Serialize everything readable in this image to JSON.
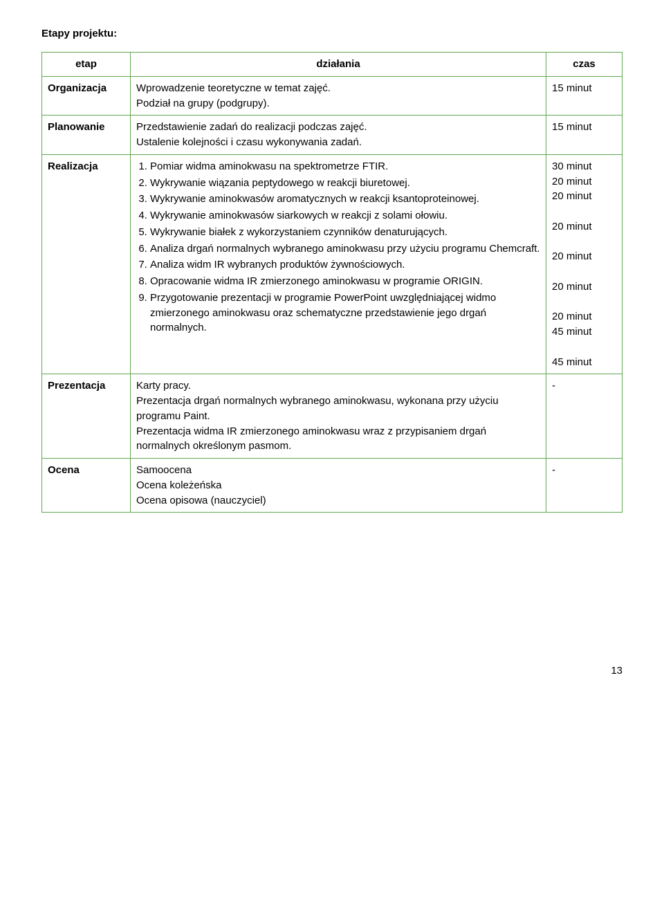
{
  "heading": "Etapy projektu:",
  "headers": {
    "etap": "etap",
    "dzialania": "działania",
    "czas": "czas"
  },
  "rows": {
    "org": {
      "etap": "Organizacja",
      "text": "Wprowadzenie teoretyczne w temat zajęć.\nPodział na grupy (podgrupy).",
      "czas": "15 minut"
    },
    "plan": {
      "etap": "Planowanie",
      "text": "Przedstawienie zadań do realizacji podczas zajęć.\nUstalenie kolejności i czasu wykonywania zadań.",
      "czas": "15 minut"
    },
    "real": {
      "etap": "Realizacja",
      "steps": [
        "Pomiar widma aminokwasu na spektrometrze FTIR.",
        "Wykrywanie wiązania peptydowego w reakcji biuretowej.",
        "Wykrywanie aminokwasów aromatycznych w reakcji ksantoproteinowej.",
        "Wykrywanie aminokwasów siarkowych w reakcji z solami ołowiu.",
        "Wykrywanie białek z wykorzystaniem czynników denaturujących.",
        "Analiza drgań normalnych wybranego aminokwasu przy użyciu programu Chemcraft.",
        "Analiza widm IR wybranych produktów żywnościowych.",
        "Opracowanie widma IR zmierzonego aminokwasu w programie ORIGIN.",
        "Przygotowanie prezentacji w programie PowerPoint uwzględniającej widmo zmierzonego aminokwasu oraz schematyczne przedstawienie jego drgań normalnych."
      ],
      "czas_lines": [
        "30 minut",
        "20 minut",
        "20 minut",
        "",
        "20 minut",
        "",
        "20 minut",
        "",
        "20 minut",
        "",
        "20 minut",
        "45 minut",
        "",
        "45 minut"
      ]
    },
    "prez": {
      "etap": "Prezentacja",
      "text": "Karty pracy.\nPrezentacja drgań normalnych wybranego aminokwasu, wykonana przy użyciu programu Paint.\nPrezentacja widma IR zmierzonego aminokwasu wraz z przypisaniem drgań normalnych określonym pasmom.",
      "czas": "-"
    },
    "ocena": {
      "etap": "Ocena",
      "text": "Samoocena\nOcena koleżeńska\nOcena opisowa (nauczyciel)",
      "czas": "-"
    }
  },
  "page_number": "13",
  "colors": {
    "border": "#5fa84e"
  }
}
